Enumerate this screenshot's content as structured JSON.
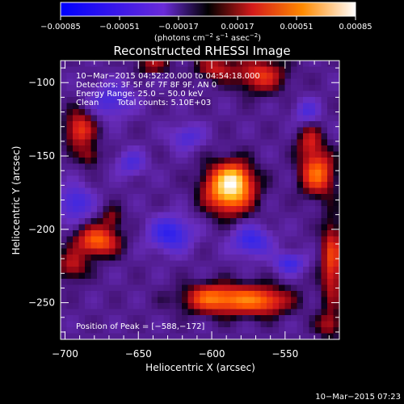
{
  "chart_data": {
    "type": "heatmap",
    "title": "Reconstructed RHESSI Image",
    "xlabel": "Heliocentric X (arcsec)",
    "ylabel": "Heliocentric Y (arcsec)",
    "xlim": [
      -703,
      -513
    ],
    "ylim": [
      -275,
      -85
    ],
    "x_ticks": [
      -700,
      -650,
      -600,
      -550
    ],
    "y_ticks": [
      -100,
      -150,
      -200,
      -250
    ],
    "x_tick_labels": [
      "−700",
      "−650",
      "−600",
      "−550"
    ],
    "y_tick_labels": [
      "−100",
      "−150",
      "−200",
      "−250"
    ],
    "colorbar": {
      "range": [
        -0.00085,
        0.00085
      ],
      "ticks": [
        -0.00085,
        -0.00051,
        -0.00017,
        0.00017,
        0.00051,
        0.00085
      ],
      "tick_labels": [
        "−0.00085",
        "−0.00051",
        "−0.00017",
        "0.00017",
        "0.00051",
        "0.00085"
      ],
      "unit_base": "(photons cm",
      "unit_sup1": "−2",
      "unit_mid1": " s",
      "unit_sup2": "−1",
      "unit_mid2": " asec",
      "unit_sup3": "−2",
      "unit_end": ")"
    },
    "annotations": {
      "line1": "10−Mar−2015 04:52:20.000 to 04:54:18.000",
      "line2": "Detectors: 3F 5F 6F 7F 8F 9F, AN 0",
      "line3": "Energy Range: 25.0 − 50.0 keV",
      "line4_method": "Clean",
      "line4_counts": "Total counts: 5.10E+03",
      "peak": "Position of Peak = [−588,−172]"
    },
    "sources": [
      {
        "x": -588,
        "y": -172,
        "sx": 11,
        "sy": 11,
        "amp": 1.0
      },
      {
        "x": -584,
        "y": -165,
        "sx": 6,
        "sy": 6,
        "amp": 0.25
      },
      {
        "x": -583,
        "y": -248,
        "sx": 22,
        "sy": 7,
        "amp": 0.62
      },
      {
        "x": -603,
        "y": -246,
        "sx": 10,
        "sy": 6,
        "amp": 0.22
      },
      {
        "x": -562,
        "y": -250,
        "sx": 9,
        "sy": 6,
        "amp": 0.2
      },
      {
        "x": -678,
        "y": -208,
        "sx": 10,
        "sy": 7,
        "amp": 0.62
      },
      {
        "x": -695,
        "y": -225,
        "sx": 7,
        "sy": 7,
        "amp": 0.35
      },
      {
        "x": -668,
        "y": -192,
        "sx": 5,
        "sy": 5,
        "amp": 0.25
      },
      {
        "x": -528,
        "y": -162,
        "sx": 8,
        "sy": 10,
        "amp": 0.62
      },
      {
        "x": -533,
        "y": -140,
        "sx": 6,
        "sy": 8,
        "amp": 0.35
      },
      {
        "x": -567,
        "y": -95,
        "sx": 12,
        "sy": 8,
        "amp": 0.45
      },
      {
        "x": -598,
        "y": -90,
        "sx": 9,
        "sy": 6,
        "amp": 0.35
      },
      {
        "x": -690,
        "y": -132,
        "sx": 7,
        "sy": 9,
        "amp": 0.48
      },
      {
        "x": -683,
        "y": -150,
        "sx": 5,
        "sy": 5,
        "amp": 0.25
      },
      {
        "x": -518,
        "y": -222,
        "sx": 5,
        "sy": 20,
        "amp": 0.5
      },
      {
        "x": -520,
        "y": -265,
        "sx": 6,
        "sy": 6,
        "amp": 0.3
      },
      {
        "x": -640,
        "y": -88,
        "sx": 8,
        "sy": 4,
        "amp": 0.3
      },
      {
        "x": -628,
        "y": -203,
        "sx": 10,
        "sy": 8,
        "amp": -0.5
      },
      {
        "x": -573,
        "y": -208,
        "sx": 9,
        "sy": 7,
        "amp": -0.45
      },
      {
        "x": -547,
        "y": -223,
        "sx": 7,
        "sy": 5,
        "amp": -0.4
      },
      {
        "x": -668,
        "y": -112,
        "sx": 10,
        "sy": 8,
        "amp": -0.35
      },
      {
        "x": -617,
        "y": -137,
        "sx": 8,
        "sy": 6,
        "amp": -0.3
      },
      {
        "x": -655,
        "y": -155,
        "sx": 7,
        "sy": 6,
        "amp": -0.3
      },
      {
        "x": -693,
        "y": -182,
        "sx": 8,
        "sy": 8,
        "amp": -0.4
      },
      {
        "x": -535,
        "y": -120,
        "sx": 6,
        "sy": 6,
        "amp": -0.3
      }
    ],
    "background_level": -0.14
  },
  "footer": {
    "timestamp": "10−Mar−2015 07:23"
  }
}
